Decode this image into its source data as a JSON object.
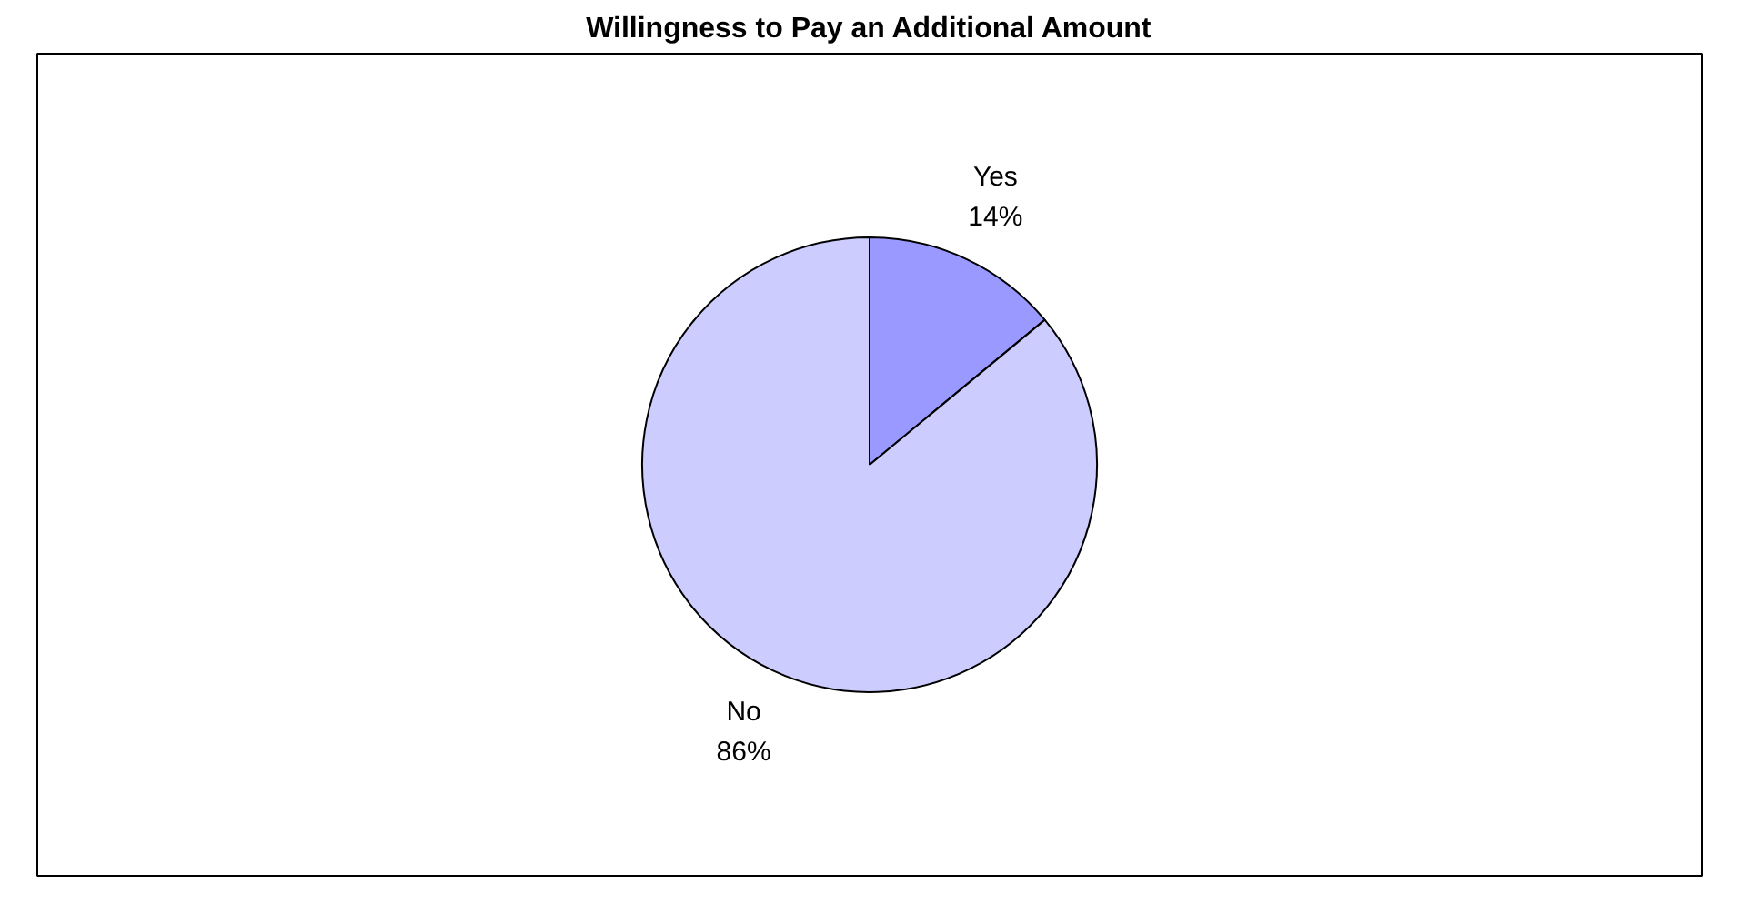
{
  "chart_data": {
    "type": "pie",
    "title": "Willingness to Pay an Additional Amount",
    "categories": [
      "Yes",
      "No"
    ],
    "values": [
      14,
      86
    ],
    "value_labels": [
      "14%",
      "86%"
    ],
    "colors": [
      "#9999ff",
      "#ccccff"
    ]
  }
}
